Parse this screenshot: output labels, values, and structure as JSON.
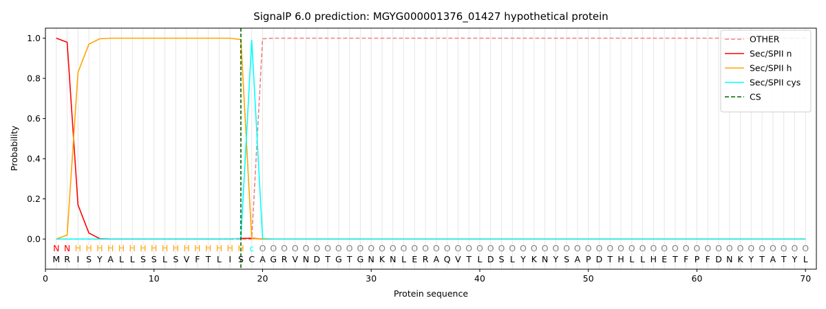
{
  "chart_data": {
    "type": "line",
    "title": "SignalP 6.0 prediction: MGYG000001376_01427 hypothetical protein",
    "xlabel": "Protein sequence",
    "ylabel": "Probability",
    "xlim": [
      0,
      71
    ],
    "ylim": [
      -0.15,
      1.05
    ],
    "x_ticks": [
      "0",
      "10",
      "20",
      "30",
      "40",
      "50",
      "60",
      "70"
    ],
    "y_ticks": [
      "0.0",
      "0.2",
      "0.4",
      "0.6",
      "0.8",
      "1.0"
    ],
    "grid": "vertical lines at each residue position",
    "legend_position": "top-right",
    "sequence": [
      "M",
      "R",
      "I",
      "S",
      "Y",
      "A",
      "L",
      "L",
      "S",
      "S",
      "L",
      "S",
      "V",
      "F",
      "T",
      "L",
      "I",
      "S",
      "C",
      "A",
      "G",
      "R",
      "V",
      "N",
      "D",
      "T",
      "G",
      "T",
      "G",
      "N",
      "K",
      "N",
      "L",
      "E",
      "R",
      "A",
      "Q",
      "V",
      "T",
      "L",
      "D",
      "S",
      "L",
      "Y",
      "K",
      "N",
      "Y",
      "S",
      "A",
      "P",
      "D",
      "T",
      "H",
      "L",
      "L",
      "H",
      "E",
      "T",
      "F",
      "P",
      "F",
      "D",
      "N",
      "K",
      "Y",
      "T",
      "A",
      "T",
      "Y",
      "L"
    ],
    "annotations": [
      "N",
      "N",
      "H",
      "H",
      "H",
      "H",
      "H",
      "H",
      "H",
      "H",
      "H",
      "H",
      "H",
      "H",
      "H",
      "H",
      "H",
      "H",
      "c",
      "O",
      "O",
      "O",
      "O",
      "O",
      "O",
      "O",
      "O",
      "O",
      "O",
      "O",
      "O",
      "O",
      "O",
      "O",
      "O",
      "O",
      "O",
      "O",
      "O",
      "O",
      "O",
      "O",
      "O",
      "O",
      "O",
      "O",
      "O",
      "O",
      "O",
      "O",
      "O",
      "O",
      "O",
      "O",
      "O",
      "O",
      "O",
      "O",
      "O",
      "O",
      "O",
      "O",
      "O",
      "O",
      "O",
      "O",
      "O",
      "O",
      "O",
      "O"
    ],
    "annotation_colors": {
      "N": "#ff0000",
      "H": "#ffa500",
      "c": "#00ffff",
      "O": "#808080"
    },
    "cleavage_site": 18,
    "series": [
      {
        "name": "OTHER",
        "color": "#f08080",
        "dash": "dashed",
        "points": [
          [
            1,
            0
          ],
          [
            2,
            0
          ],
          [
            3,
            0
          ],
          [
            4,
            0
          ],
          [
            5,
            0
          ],
          [
            6,
            0
          ],
          [
            7,
            0
          ],
          [
            8,
            0
          ],
          [
            9,
            0
          ],
          [
            10,
            0
          ],
          [
            11,
            0
          ],
          [
            12,
            0
          ],
          [
            13,
            0
          ],
          [
            14,
            0
          ],
          [
            15,
            0
          ],
          [
            16,
            0
          ],
          [
            17,
            0
          ],
          [
            18,
            0
          ],
          [
            19,
            0
          ],
          [
            20,
            0.997
          ],
          [
            21,
            1
          ],
          [
            70,
            1
          ]
        ]
      },
      {
        "name": "Sec/SPII n",
        "color": "#ff0000",
        "dash": "solid",
        "points": [
          [
            1,
            1.0
          ],
          [
            2,
            0.98
          ],
          [
            3,
            0.17
          ],
          [
            4,
            0.03
          ],
          [
            5,
            0.002
          ],
          [
            6,
            0
          ],
          [
            17,
            0
          ],
          [
            18,
            0.003
          ],
          [
            19,
            0.004
          ],
          [
            20,
            0
          ],
          [
            70,
            0
          ]
        ]
      },
      {
        "name": "Sec/SPII h",
        "color": "#ffa500",
        "dash": "solid",
        "points": [
          [
            1,
            0
          ],
          [
            2,
            0.02
          ],
          [
            3,
            0.83
          ],
          [
            4,
            0.97
          ],
          [
            5,
            0.997
          ],
          [
            6,
            1.0
          ],
          [
            17,
            1.0
          ],
          [
            18,
            0.993
          ],
          [
            19,
            0.002
          ],
          [
            20,
            0
          ],
          [
            70,
            0
          ]
        ]
      },
      {
        "name": "Sec/SPII cys",
        "color": "#00ffff",
        "dash": "solid",
        "points": [
          [
            1,
            0
          ],
          [
            17,
            0
          ],
          [
            18,
            0.003
          ],
          [
            19,
            0.99
          ],
          [
            20,
            0.003
          ],
          [
            21,
            0
          ],
          [
            70,
            0
          ]
        ]
      },
      {
        "name": "CS",
        "color": "#006400",
        "dash": "dashed",
        "points": []
      }
    ]
  }
}
